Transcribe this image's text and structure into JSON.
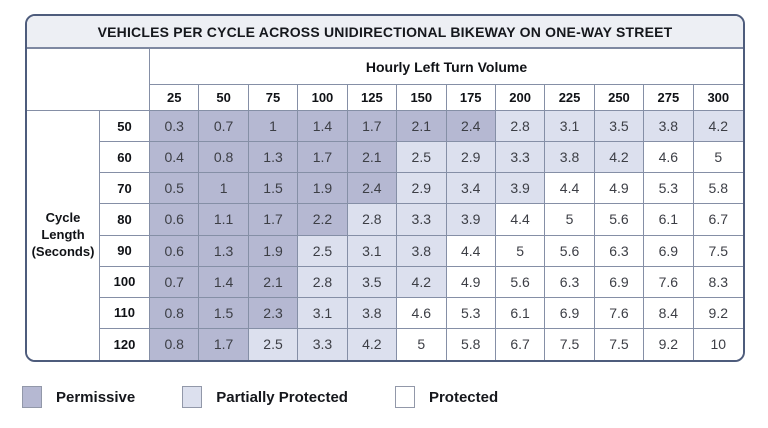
{
  "chart_data": {
    "type": "table",
    "title": "VEHICLES PER CYCLE ACROSS UNIDIRECTIONAL BIKEWAY ON ONE-WAY STREET",
    "col_group_label": "Hourly Left Turn Volume",
    "row_group_label": "Cycle Length (Seconds)",
    "row_group_label_lines": [
      "Cycle",
      "Length",
      "(Seconds)"
    ],
    "columns": [
      "25",
      "50",
      "75",
      "100",
      "125",
      "150",
      "175",
      "200",
      "225",
      "250",
      "275",
      "300"
    ],
    "rows": [
      {
        "cycle_length": "50",
        "values": [
          0.3,
          0.7,
          1,
          1.4,
          1.7,
          2.1,
          2.4,
          2.8,
          3.1,
          3.5,
          3.8,
          4.2
        ]
      },
      {
        "cycle_length": "60",
        "values": [
          0.4,
          0.8,
          1.3,
          1.7,
          2.1,
          2.5,
          2.9,
          3.3,
          3.8,
          4.2,
          4.6,
          5
        ]
      },
      {
        "cycle_length": "70",
        "values": [
          0.5,
          1,
          1.5,
          1.9,
          2.4,
          2.9,
          3.4,
          3.9,
          4.4,
          4.9,
          5.3,
          5.8
        ]
      },
      {
        "cycle_length": "80",
        "values": [
          0.6,
          1.1,
          1.7,
          2.2,
          2.8,
          3.3,
          3.9,
          4.4,
          5,
          5.6,
          6.1,
          6.7
        ]
      },
      {
        "cycle_length": "90",
        "values": [
          0.6,
          1.3,
          1.9,
          2.5,
          3.1,
          3.8,
          4.4,
          5,
          5.6,
          6.3,
          6.9,
          7.5
        ]
      },
      {
        "cycle_length": "100",
        "values": [
          0.7,
          1.4,
          2.1,
          2.8,
          3.5,
          4.2,
          4.9,
          5.6,
          6.3,
          6.9,
          7.6,
          8.3
        ]
      },
      {
        "cycle_length": "110",
        "values": [
          0.8,
          1.5,
          2.3,
          3.1,
          3.8,
          4.6,
          5.3,
          6.1,
          6.9,
          7.6,
          8.4,
          9.2
        ]
      },
      {
        "cycle_length": "120",
        "values": [
          0.8,
          1.7,
          2.5,
          3.3,
          4.2,
          5,
          5.8,
          6.7,
          7.5,
          7.5,
          9.2,
          10
        ]
      }
    ],
    "thresholds": {
      "permissive_max": 2.4,
      "partially_protected_max": 4.2
    },
    "category_colors": {
      "permissive": "#b5b8d2",
      "partially": "#dce0ee",
      "protected": "#ffffff"
    },
    "legend": [
      {
        "category": "permissive",
        "label": "Permissive",
        "color": "#b5b8d2"
      },
      {
        "category": "partially",
        "label": "Partially Protected",
        "color": "#dce0ee"
      },
      {
        "category": "protected",
        "label": "Protected",
        "color": "#ffffff"
      }
    ]
  },
  "colors": {
    "panel_border": "#4e5c7c",
    "grid_line": "#858fa6",
    "title_bar_bg": "#edeff4",
    "text": "#15171c"
  }
}
